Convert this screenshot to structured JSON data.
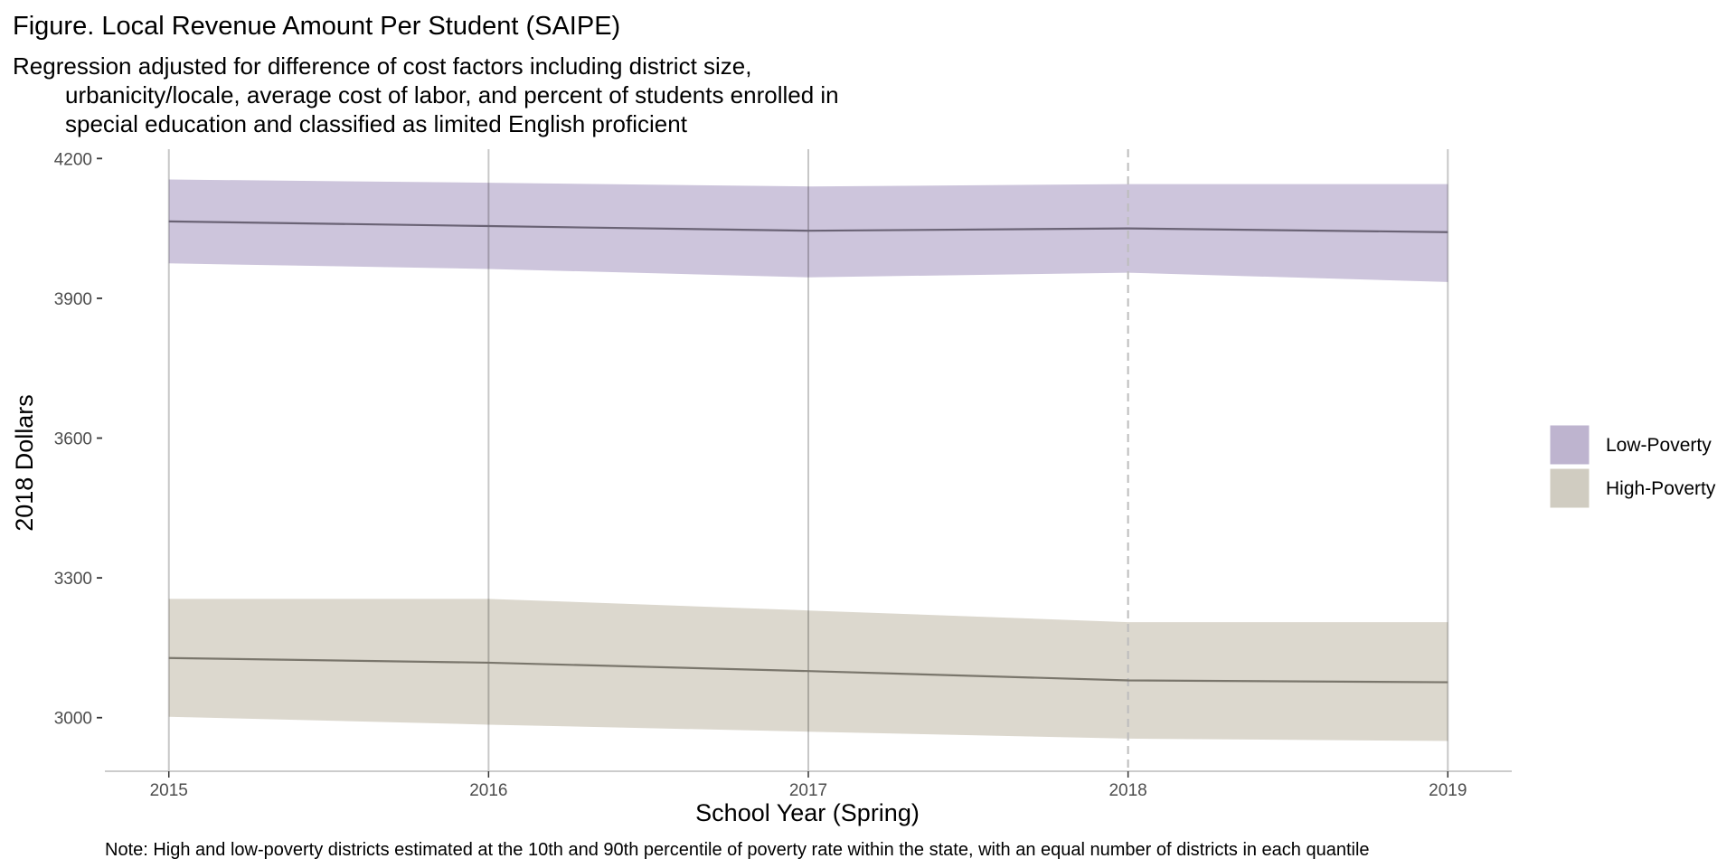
{
  "chart_data": {
    "type": "area",
    "title": "Figure. Local Revenue Amount Per Student (SAIPE)",
    "subtitle_lines": [
      "Regression adjusted for difference of cost factors including district size,",
      "urbanicity/locale, average cost of labor, and percent of students enrolled in",
      "special education and classified as limited English proficient"
    ],
    "xlabel": "School Year (Spring)",
    "ylabel": "2018 Dollars",
    "x": [
      2015,
      2016,
      2017,
      2018,
      2019
    ],
    "x_tick_labels": [
      "2015",
      "2016",
      "2017",
      "2018",
      "2019"
    ],
    "y_ticks": [
      3000,
      3300,
      3600,
      3900,
      4200
    ],
    "y_tick_labels": [
      "3000",
      "3300",
      "3600",
      "3900",
      "4200"
    ],
    "xlim": [
      2014.8,
      2019.2
    ],
    "ylim": [
      2885,
      4220
    ],
    "grid": "vertical lines at each year",
    "reference_line": {
      "x": 2018,
      "style": "dashed"
    },
    "legend_position": "right",
    "series": [
      {
        "name": "Low-Poverty",
        "values": [
          4065,
          4055,
          4045,
          4050,
          4042
        ],
        "lower": [
          3975,
          3963,
          3945,
          3955,
          3935
        ],
        "upper": [
          4155,
          4148,
          4140,
          4145,
          4145
        ],
        "band_color": "#cdc5dc",
        "legend_color": "#beb4cf",
        "line_color": "#6a6375"
      },
      {
        "name": "High-Poverty",
        "values": [
          3128,
          3118,
          3100,
          3080,
          3076
        ],
        "lower": [
          3002,
          2985,
          2970,
          2955,
          2950
        ],
        "upper": [
          3255,
          3255,
          3230,
          3205,
          3205
        ],
        "band_color": "#dcd8ce",
        "legend_color": "#d0ccc1",
        "line_color": "#7a766c"
      }
    ]
  },
  "note": "Note: High and low-poverty districts estimated at the 10th and 90th percentile of poverty rate within the state, with an equal number of districts in each quantile"
}
